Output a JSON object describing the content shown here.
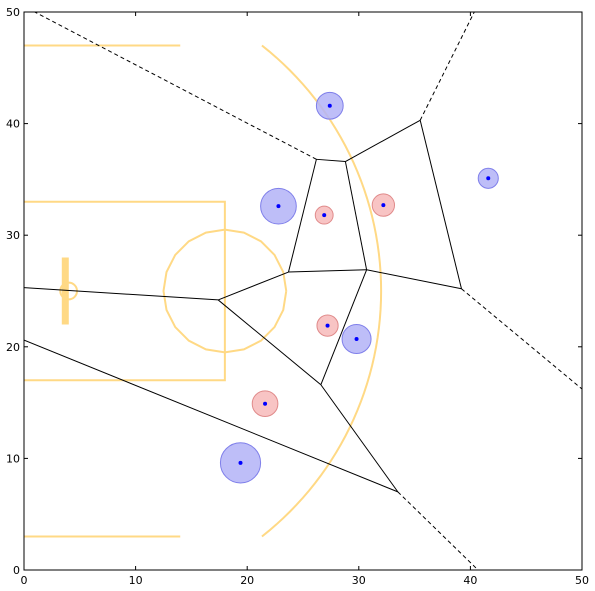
{
  "chart_data": {
    "type": "scatter",
    "title": "",
    "xlabel": "",
    "ylabel": "",
    "xlim": [
      0,
      50
    ],
    "ylim": [
      0,
      50
    ],
    "grid": false,
    "x_ticks": [
      0,
      10,
      20,
      30,
      40,
      50
    ],
    "y_ticks": [
      0,
      10,
      20,
      30,
      40,
      50
    ],
    "x_tick_labels": [
      "0",
      "10",
      "20",
      "30",
      "40",
      "50"
    ],
    "y_tick_labels": [
      "0",
      "10",
      "20",
      "30",
      "40",
      "50"
    ],
    "colors": {
      "court_lines": "#ffd985",
      "blue_fill": "#b3b3f7",
      "blue_edge": "#7f7fea",
      "red_fill": "#f7baba",
      "red_edge": "#e08a8a",
      "center_dot": "#0000ff",
      "voronoi_edges": "#000000"
    },
    "series": [
      {
        "color": "blue",
        "points": [
          {
            "x": 27.4,
            "y": 41.6,
            "size": 1.2
          },
          {
            "x": 22.8,
            "y": 32.6,
            "size": 1.6
          },
          {
            "x": 41.6,
            "y": 35.1,
            "size": 0.9
          },
          {
            "x": 29.8,
            "y": 20.7,
            "size": 1.3
          },
          {
            "x": 19.4,
            "y": 9.6,
            "size": 1.8
          }
        ]
      },
      {
        "color": "red",
        "points": [
          {
            "x": 26.9,
            "y": 31.8,
            "size": 0.8
          },
          {
            "x": 32.2,
            "y": 32.7,
            "size": 1.0
          },
          {
            "x": 27.2,
            "y": 21.9,
            "size": 0.95
          },
          {
            "x": 21.6,
            "y": 14.9,
            "size": 1.15
          }
        ]
      }
    ],
    "voronoi": {
      "solid_edges": [
        [
          [
            26.2,
            36.8
          ],
          [
            28.8,
            36.6
          ]
        ],
        [
          [
            28.8,
            36.6
          ],
          [
            35.5,
            40.3
          ]
        ],
        [
          [
            26.2,
            36.8
          ],
          [
            23.7,
            26.7
          ]
        ],
        [
          [
            28.8,
            36.6
          ],
          [
            30.7,
            26.9
          ]
        ],
        [
          [
            35.5,
            40.3
          ],
          [
            39.2,
            25.2
          ]
        ],
        [
          [
            30.7,
            26.9
          ],
          [
            39.2,
            25.2
          ]
        ],
        [
          [
            23.7,
            26.7
          ],
          [
            30.7,
            26.9
          ]
        ],
        [
          [
            23.7,
            26.7
          ],
          [
            17.4,
            24.2
          ]
        ],
        [
          [
            0,
            25.3
          ],
          [
            17.4,
            24.2
          ]
        ],
        [
          [
            17.4,
            24.2
          ],
          [
            26.6,
            16.6
          ]
        ],
        [
          [
            30.7,
            26.9
          ],
          [
            26.6,
            16.6
          ]
        ],
        [
          [
            26.6,
            16.6
          ],
          [
            33.5,
            7.0
          ]
        ],
        [
          [
            0,
            20.6
          ],
          [
            33.5,
            7.0
          ]
        ]
      ],
      "dashed_edges": [
        [
          [
            26.2,
            36.8
          ],
          [
            0,
            50.5
          ]
        ],
        [
          [
            35.5,
            40.3
          ],
          [
            40.6,
            50.5
          ]
        ],
        [
          [
            39.2,
            25.2
          ],
          [
            50.5,
            15.8
          ]
        ],
        [
          [
            33.5,
            7.0
          ],
          [
            41.3,
            -0.6
          ]
        ]
      ]
    },
    "court": {
      "baseline_x": 0,
      "hoop": {
        "x": 4.0,
        "y": 25.0,
        "r": 0.75
      },
      "backboard": {
        "x": 3.7,
        "y_from": 22.0,
        "y_to": 28.0
      },
      "paint": {
        "x_to": 18.0,
        "y_from": 17.0,
        "y_to": 33.0
      },
      "free_throw_circle": {
        "x": 18.0,
        "y": 25.0,
        "r": 5.5
      },
      "three_point_corners": {
        "y_low": 3.0,
        "y_high": 47.0,
        "x_to": 14.0
      },
      "three_point_arc": {
        "x": 4.0,
        "y": 25.0,
        "r": 28.0
      }
    }
  }
}
